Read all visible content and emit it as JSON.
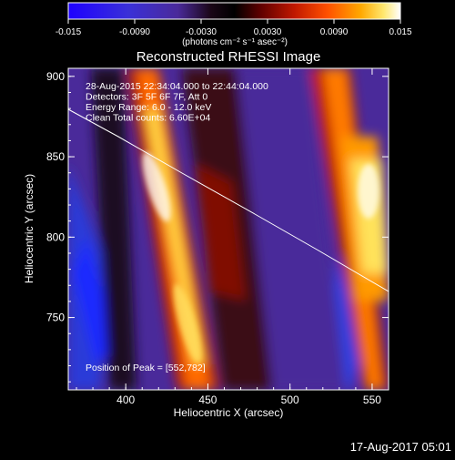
{
  "colorbar": {
    "ticks": [
      "-0.015",
      "-0.0090",
      "-0.0030",
      "0.0030",
      "0.0090",
      "0.015"
    ],
    "units": "(photons cm⁻² s⁻¹ asec⁻²)",
    "colors": [
      "#1a00ff",
      "#3a2bd8",
      "#5b2bb0",
      "#3b0a2a",
      "#000000",
      "#5a0000",
      "#b01000",
      "#ff3a00",
      "#ff9a00",
      "#ffe25a",
      "#ffffff"
    ]
  },
  "image": {
    "title": "Reconstructed RHESSI Image",
    "info": [
      "28-Aug-2015 22:34:04.000 to 22:44:04.000",
      "Detectors: 3F 5F 6F 7F, Att 0",
      "Energy Range: 6.0 - 12.0 keV",
      "Clean    Total counts: 6.60E+04"
    ],
    "peak_label": "Position of Peak = [552,782]",
    "x_axis": {
      "label": "Heliocentric X (arcsec)",
      "ticks": [
        "400",
        "450",
        "500",
        "550"
      ],
      "range": [
        365,
        560
      ]
    },
    "y_axis": {
      "label": "Heliocentric Y (arcsec)",
      "ticks": [
        "750",
        "800",
        "850",
        "900"
      ],
      "range": [
        705,
        905
      ]
    }
  },
  "footer": {
    "timestamp": "17-Aug-2017 05:01"
  }
}
